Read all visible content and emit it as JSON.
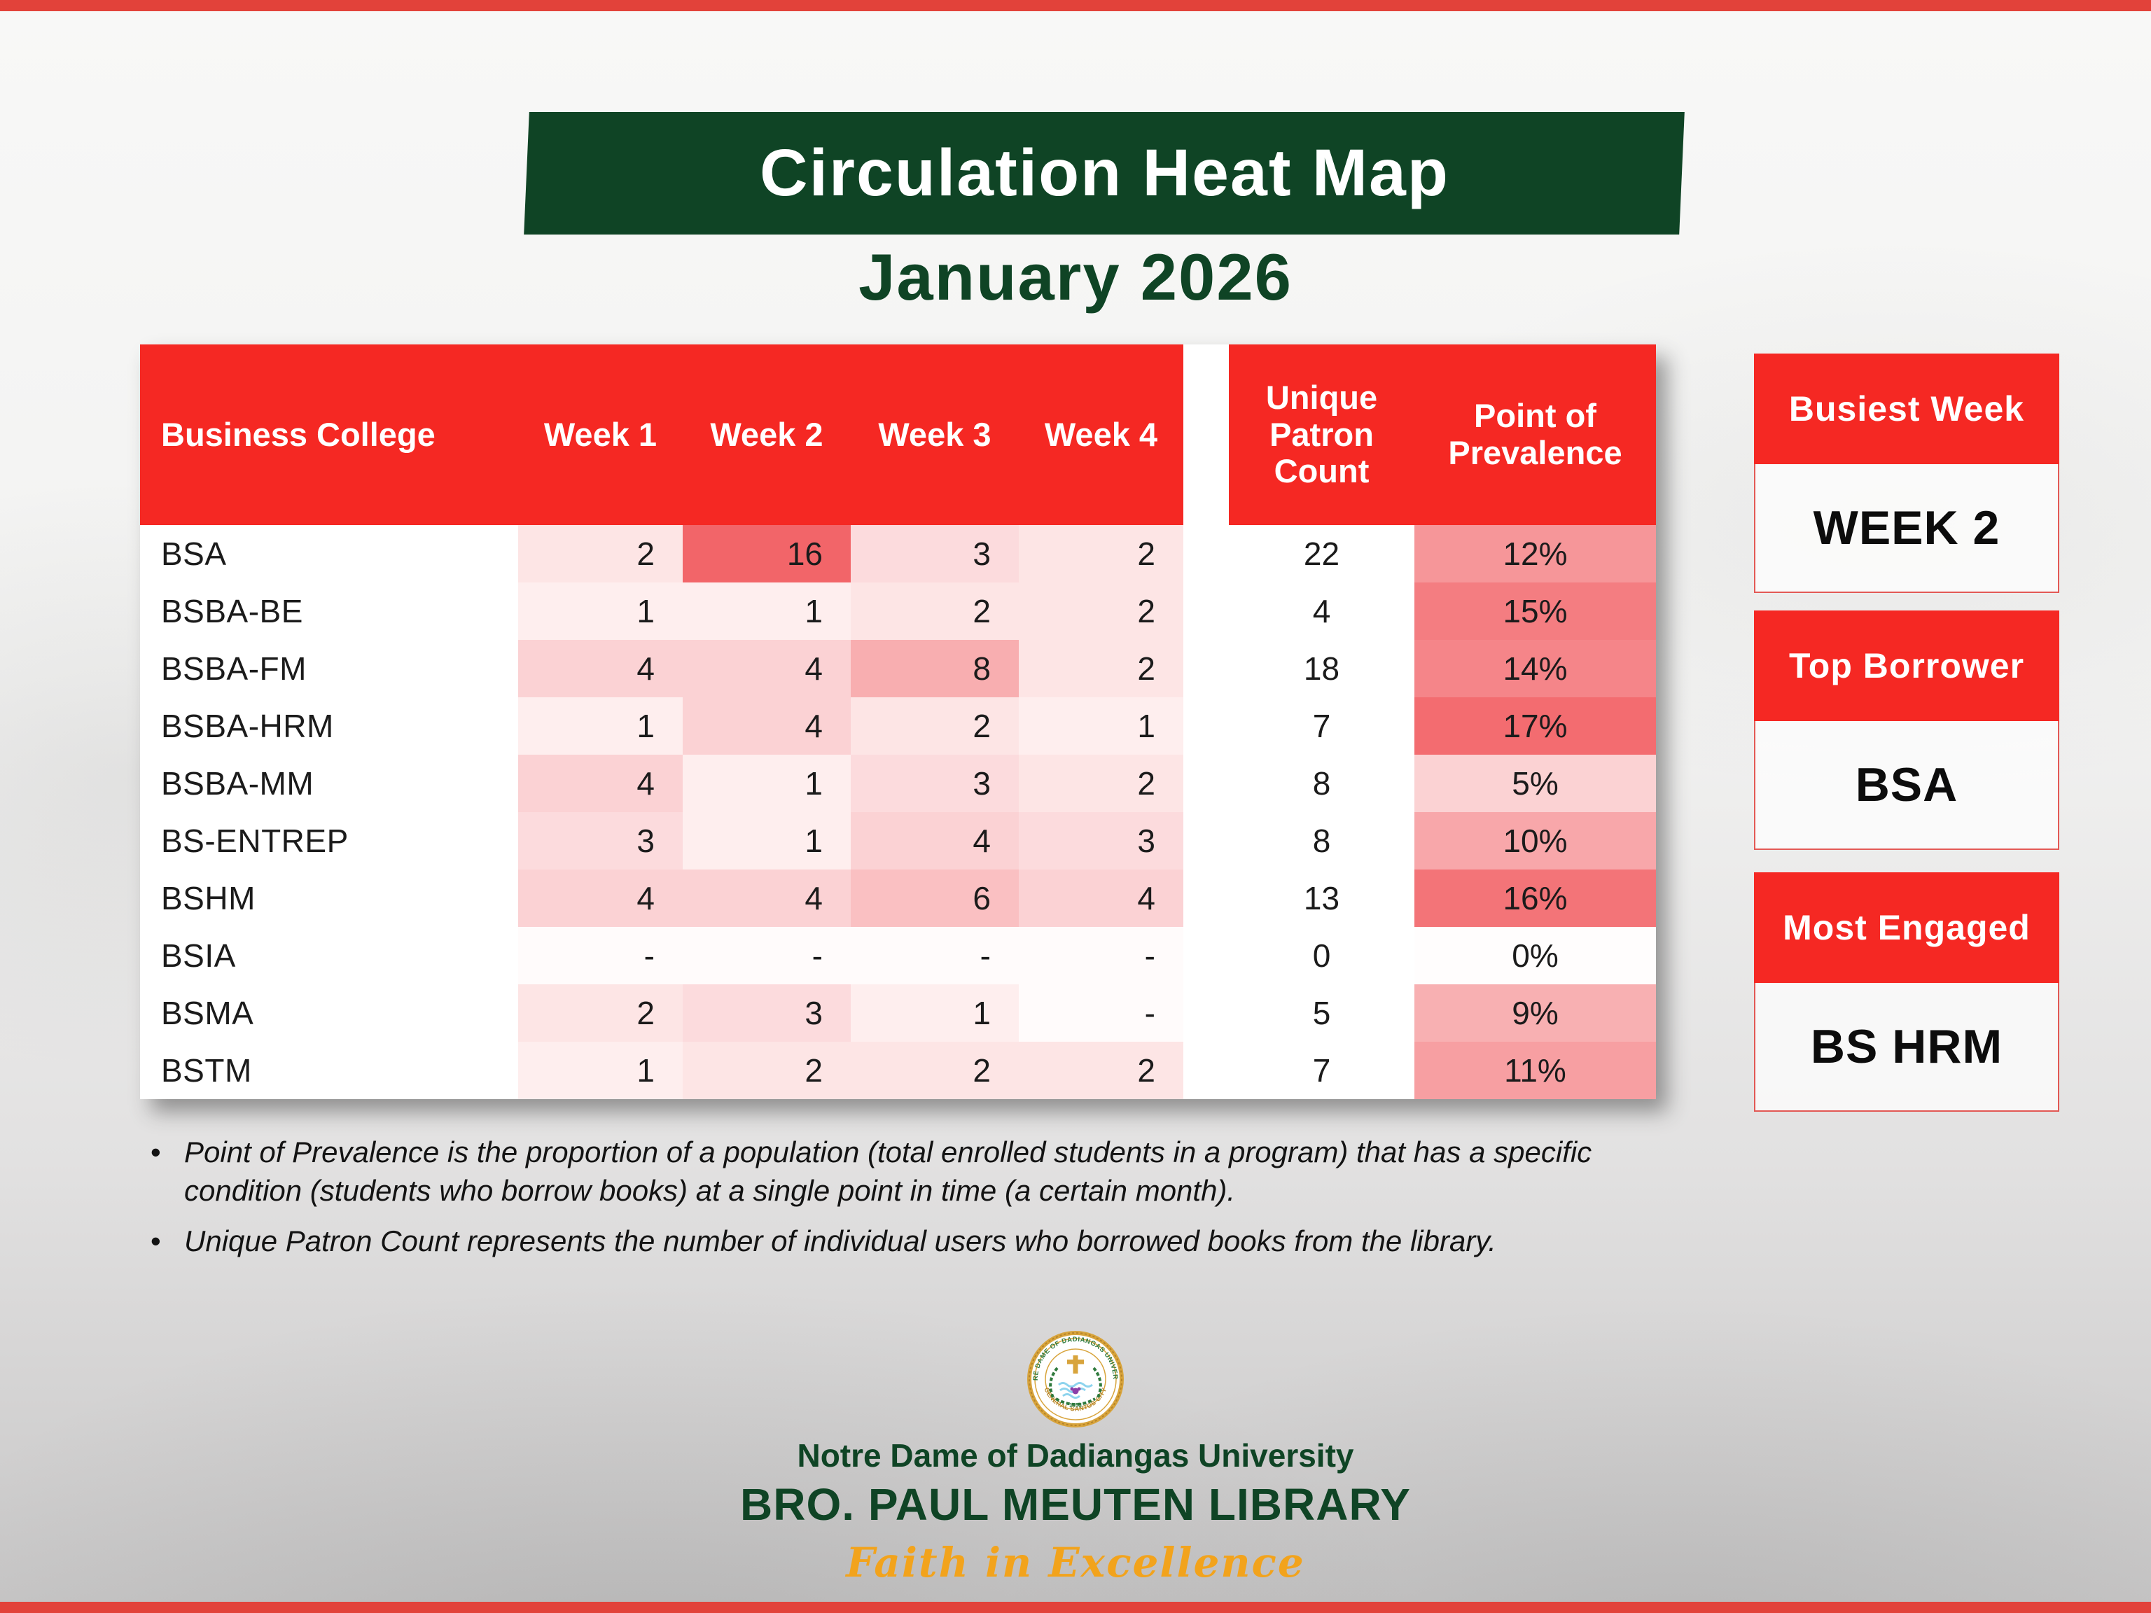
{
  "slide": {
    "title": "Circulation Heat Map",
    "subtitle": "January 2026"
  },
  "chart_data": {
    "type": "heatmap",
    "title": "Circulation Heat Map",
    "subtitle": "January 2026",
    "row_label_header": "Business College",
    "columns": [
      "Week 1",
      "Week 2",
      "Week 3",
      "Week 4"
    ],
    "rows": [
      "BSA",
      "BSBA-BE",
      "BSBA-FM",
      "BSBA-HRM",
      "BSBA-MM",
      "BS-ENTREP",
      "BSHM",
      "BSIA",
      "BSMA",
      "BSTM"
    ],
    "values": [
      [
        2,
        16,
        3,
        2
      ],
      [
        1,
        1,
        2,
        2
      ],
      [
        4,
        4,
        8,
        2
      ],
      [
        1,
        4,
        2,
        1
      ],
      [
        4,
        1,
        3,
        2
      ],
      [
        3,
        1,
        4,
        3
      ],
      [
        4,
        4,
        6,
        4
      ],
      [
        null,
        null,
        null,
        null
      ],
      [
        2,
        3,
        1,
        null
      ],
      [
        1,
        2,
        2,
        2
      ]
    ],
    "unique_patron_count": [
      22,
      4,
      18,
      7,
      8,
      8,
      13,
      0,
      5,
      7
    ],
    "point_of_prevalence_pct": [
      12,
      15,
      14,
      17,
      5,
      10,
      16,
      0,
      9,
      11
    ],
    "missing_value_display": "-",
    "legend": "color intensity encodes borrowing volume / prevalence"
  },
  "table": {
    "patron_header": "Unique Patron Count",
    "prevalence_header": "Point of Prevalence"
  },
  "panels": [
    {
      "title": "Busiest Week",
      "value": "WEEK 2"
    },
    {
      "title": "Top Borrower",
      "value": "BSA"
    },
    {
      "title": "Most Engaged",
      "value": "BS HRM"
    }
  ],
  "notes": [
    "Point of Prevalence is the proportion of a population (total enrolled students in a program) that has a specific condition (students who borrow books) at a single point in time (a certain month).",
    "Unique Patron Count represents the number of individual users who borrowed books from the library."
  ],
  "footer": {
    "university": "Notre Dame of Dadiangas University",
    "library": "BRO. PAUL MEUTEN LIBRARY",
    "tagline": "Faith in Excellence",
    "seal_top": "NOTRE DAME OF DADIANGAS UNIVERSITY",
    "seal_bottom": "GENERAL SANTOS CITY",
    "seal_year": "1953"
  },
  "colors": {
    "red": "#f52823",
    "dark_green": "#0f4425",
    "gold": "#f2a31c",
    "seal_gold": "#d8a43c",
    "edge_bar": "#e2423a",
    "heat_base_rgb": [
      238,
      52,
      58
    ]
  }
}
